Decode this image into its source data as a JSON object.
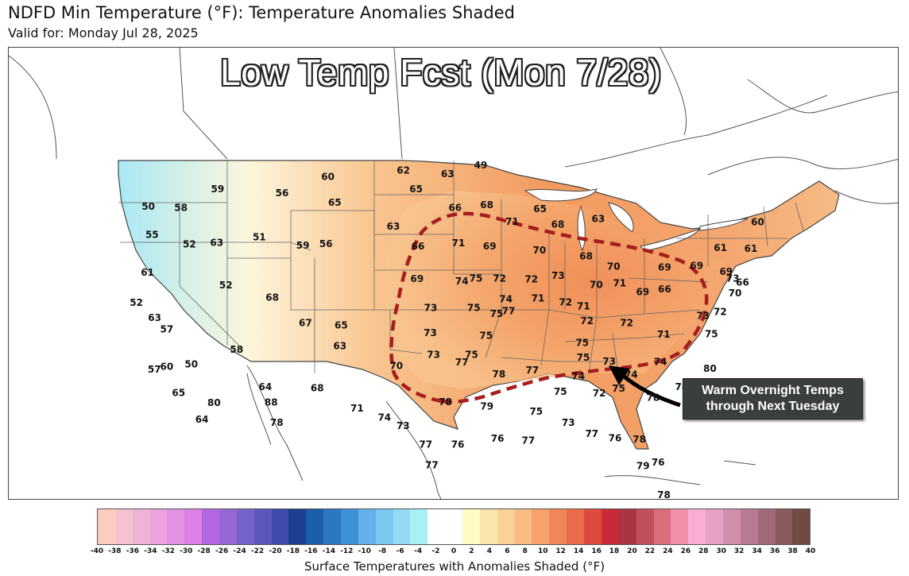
{
  "header": {
    "title": "NDFD Min Temperature (°F): Temperature Anomalies Shaded",
    "subtitle": "Valid for: Monday Jul 28, 2025"
  },
  "overlay_title": "Low Temp Fcst (Mon 7/28)",
  "callout": {
    "line1": "Warm Overnight Temps",
    "line2": "through Next Tuesday"
  },
  "colorbar": {
    "label": "Surface Temperatures with Anomalies Shaded (°F)",
    "ticks": [
      "-40",
      "-38",
      "-36",
      "-34",
      "-32",
      "-30",
      "-28",
      "-26",
      "-24",
      "-22",
      "-20",
      "-18",
      "-16",
      "-14",
      "-12",
      "-10",
      "-8",
      "-6",
      "-4",
      "-2",
      "0",
      "2",
      "4",
      "6",
      "8",
      "10",
      "12",
      "14",
      "16",
      "18",
      "20",
      "22",
      "24",
      "26",
      "28",
      "30",
      "32",
      "34",
      "36",
      "38",
      "40"
    ],
    "colors": [
      "#fdcdbf",
      "#f7c2cf",
      "#f0b3d8",
      "#eaa3de",
      "#e492e2",
      "#dc7fe6",
      "#b267e0",
      "#9867d6",
      "#7663c9",
      "#5a58bb",
      "#3f4aaa",
      "#1d3f8f",
      "#1a5fa8",
      "#2b78c0",
      "#3f90d6",
      "#62b0ec",
      "#7ac7f2",
      "#93daf4",
      "#a9f0f6",
      "#ffffff",
      "#ffffff",
      "#fffbc5",
      "#fbe6ad",
      "#fad298",
      "#f9bd83",
      "#f6a26c",
      "#f28658",
      "#eb6a4a",
      "#de4a3d",
      "#c92a35",
      "#a93444",
      "#c0505e",
      "#db6c7b",
      "#ef8fa8",
      "#fbaed5",
      "#e7a1c6",
      "#cf8eac",
      "#b77a95",
      "#a06a78",
      "#895a5e",
      "#714a43"
    ]
  },
  "map_labels": [
    {
      "t": "50",
      "lon": -124.3,
      "lat": 47.6
    },
    {
      "t": "58",
      "lon": -121.3,
      "lat": 47.2
    },
    {
      "t": "59",
      "lon": -118.2,
      "lat": 48.2
    },
    {
      "t": "55",
      "lon": -123.5,
      "lat": 45.6
    },
    {
      "t": "52",
      "lon": -120.0,
      "lat": 44.6
    },
    {
      "t": "63",
      "lon": -117.6,
      "lat": 44.5
    },
    {
      "t": "61",
      "lon": -123.3,
      "lat": 43.0
    },
    {
      "t": "51",
      "lon": -113.9,
      "lat": 44.6
    },
    {
      "t": "56",
      "lon": -112.3,
      "lat": 47.5
    },
    {
      "t": "60",
      "lon": -108.3,
      "lat": 48.4
    },
    {
      "t": "65",
      "lon": -107.5,
      "lat": 46.6
    },
    {
      "t": "59",
      "lon": -110.0,
      "lat": 43.8
    },
    {
      "t": "56",
      "lon": -108.0,
      "lat": 43.8
    },
    {
      "t": "52",
      "lon": -123.8,
      "lat": 41.0
    },
    {
      "t": "63",
      "lon": -122.0,
      "lat": 39.8
    },
    {
      "t": "57",
      "lon": -120.8,
      "lat": 38.9
    },
    {
      "t": "52",
      "lon": -116.3,
      "lat": 41.5
    },
    {
      "t": "68",
      "lon": -112.2,
      "lat": 40.4
    },
    {
      "t": "57",
      "lon": -121.3,
      "lat": 36.2
    },
    {
      "t": "60",
      "lon": -120.3,
      "lat": 36.3
    },
    {
      "t": "50",
      "lon": -118.3,
      "lat": 36.3
    },
    {
      "t": "67",
      "lon": -109.2,
      "lat": 38.5
    },
    {
      "t": "65",
      "lon": -106.2,
      "lat": 38.2
    },
    {
      "t": "63",
      "lon": -106.2,
      "lat": 36.8
    },
    {
      "t": "58",
      "lon": -114.7,
      "lat": 37.0
    },
    {
      "t": "65",
      "lon": -119.0,
      "lat": 34.4
    },
    {
      "t": "80",
      "lon": -116.0,
      "lat": 33.5
    },
    {
      "t": "64",
      "lon": -116.8,
      "lat": 32.4
    },
    {
      "t": "64",
      "lon": -112.0,
      "lat": 34.3
    },
    {
      "t": "88",
      "lon": -111.4,
      "lat": 33.2
    },
    {
      "t": "78",
      "lon": -110.8,
      "lat": 31.8
    },
    {
      "t": "68",
      "lon": -107.8,
      "lat": 34.0
    },
    {
      "t": "71",
      "lon": -104.5,
      "lat": 32.5
    },
    {
      "t": "62",
      "lon": -101.5,
      "lat": 48.6
    },
    {
      "t": "63",
      "lon": -97.5,
      "lat": 48.3
    },
    {
      "t": "49",
      "lon": -94.5,
      "lat": 48.9
    },
    {
      "t": "65",
      "lon": -100.3,
      "lat": 47.3
    },
    {
      "t": "66",
      "lon": -96.8,
      "lat": 46.0
    },
    {
      "t": "68",
      "lon": -94.0,
      "lat": 46.2
    },
    {
      "t": "71",
      "lon": -91.8,
      "lat": 45.1
    },
    {
      "t": "65",
      "lon": -89.3,
      "lat": 46.0
    },
    {
      "t": "68",
      "lon": -87.8,
      "lat": 45.0
    },
    {
      "t": "63",
      "lon": -84.2,
      "lat": 45.5
    },
    {
      "t": "63",
      "lon": -102.2,
      "lat": 44.8
    },
    {
      "t": "66",
      "lon": -100.0,
      "lat": 43.4
    },
    {
      "t": "71",
      "lon": -96.5,
      "lat": 43.6
    },
    {
      "t": "69",
      "lon": -93.8,
      "lat": 43.4
    },
    {
      "t": "70",
      "lon": -89.5,
      "lat": 43.2
    },
    {
      "t": "68",
      "lon": -85.5,
      "lat": 42.9
    },
    {
      "t": "70",
      "lon": -83.2,
      "lat": 42.3
    },
    {
      "t": "69",
      "lon": -100.0,
      "lat": 41.2
    },
    {
      "t": "74",
      "lon": -96.2,
      "lat": 41.0
    },
    {
      "t": "75",
      "lon": -95.0,
      "lat": 41.2
    },
    {
      "t": "72",
      "lon": -93.0,
      "lat": 41.2
    },
    {
      "t": "72",
      "lon": -90.3,
      "lat": 41.2
    },
    {
      "t": "73",
      "lon": -88.0,
      "lat": 41.5
    },
    {
      "t": "70",
      "lon": -84.8,
      "lat": 41.0
    },
    {
      "t": "71",
      "lon": -82.8,
      "lat": 41.2
    },
    {
      "t": "69",
      "lon": -80.9,
      "lat": 40.7
    },
    {
      "t": "66",
      "lon": -79.0,
      "lat": 41.0
    },
    {
      "t": "69",
      "lon": -78.8,
      "lat": 42.5
    },
    {
      "t": "69",
      "lon": -76.0,
      "lat": 42.8
    },
    {
      "t": "69",
      "lon": -73.5,
      "lat": 42.6
    },
    {
      "t": "61",
      "lon": -73.7,
      "lat": 44.2
    },
    {
      "t": "61",
      "lon": -71.0,
      "lat": 44.4
    },
    {
      "t": "60",
      "lon": -70.0,
      "lat": 46.3
    },
    {
      "t": "66",
      "lon": -72.2,
      "lat": 42.0
    },
    {
      "t": "73",
      "lon": -73.0,
      "lat": 42.2
    },
    {
      "t": "70",
      "lon": -73.0,
      "lat": 41.2
    },
    {
      "t": "72",
      "lon": -74.5,
      "lat": 39.8
    },
    {
      "t": "73",
      "lon": -76.0,
      "lat": 39.4
    },
    {
      "t": "75",
      "lon": -75.5,
      "lat": 38.2
    },
    {
      "t": "73",
      "lon": -98.8,
      "lat": 39.2
    },
    {
      "t": "75",
      "lon": -95.2,
      "lat": 39.2
    },
    {
      "t": "75",
      "lon": -93.3,
      "lat": 38.8
    },
    {
      "t": "77",
      "lon": -92.3,
      "lat": 39.0
    },
    {
      "t": "74",
      "lon": -92.5,
      "lat": 39.8
    },
    {
      "t": "71",
      "lon": -89.8,
      "lat": 39.9
    },
    {
      "t": "72",
      "lon": -87.5,
      "lat": 39.7
    },
    {
      "t": "71",
      "lon": -86.0,
      "lat": 39.5
    },
    {
      "t": "72",
      "lon": -85.8,
      "lat": 38.5
    },
    {
      "t": "72",
      "lon": -82.5,
      "lat": 38.5
    },
    {
      "t": "71",
      "lon": -79.5,
      "lat": 37.9
    },
    {
      "t": "73",
      "lon": -98.8,
      "lat": 37.5
    },
    {
      "t": "75",
      "lon": -94.2,
      "lat": 37.3
    },
    {
      "t": "73",
      "lon": -98.5,
      "lat": 36.0
    },
    {
      "t": "77",
      "lon": -96.2,
      "lat": 35.5
    },
    {
      "t": "75",
      "lon": -95.4,
      "lat": 36.0
    },
    {
      "t": "75",
      "lon": -86.3,
      "lat": 37.0
    },
    {
      "t": "75",
      "lon": -86.3,
      "lat": 36.0
    },
    {
      "t": "73",
      "lon": -84.2,
      "lat": 35.8
    },
    {
      "t": "74",
      "lon": -80.0,
      "lat": 36.0
    },
    {
      "t": "74",
      "lon": -82.5,
      "lat": 35.0
    },
    {
      "t": "80",
      "lon": -76.0,
      "lat": 35.8
    },
    {
      "t": "70",
      "lon": -101.5,
      "lat": 35.3
    },
    {
      "t": "78",
      "lon": -93.2,
      "lat": 34.7
    },
    {
      "t": "77",
      "lon": -90.5,
      "lat": 35.0
    },
    {
      "t": "74",
      "lon": -86.8,
      "lat": 34.7
    },
    {
      "t": "75",
      "lon": -88.3,
      "lat": 33.6
    },
    {
      "t": "72",
      "lon": -85.2,
      "lat": 33.6
    },
    {
      "t": "75",
      "lon": -83.6,
      "lat": 34.0
    },
    {
      "t": "78",
      "lon": -78.5,
      "lat": 34.4
    },
    {
      "t": "78",
      "lon": -80.9,
      "lat": 33.5
    },
    {
      "t": "78",
      "lon": -97.5,
      "lat": 32.8
    },
    {
      "t": "79",
      "lon": -94.2,
      "lat": 32.5
    },
    {
      "t": "75",
      "lon": -90.3,
      "lat": 32.2
    },
    {
      "t": "74",
      "lon": -102.3,
      "lat": 31.8
    },
    {
      "t": "73",
      "lon": -100.8,
      "lat": 31.2
    },
    {
      "t": "73",
      "lon": -87.8,
      "lat": 31.5
    },
    {
      "t": "77",
      "lon": -86.0,
      "lat": 30.8
    },
    {
      "t": "76",
      "lon": -84.2,
      "lat": 30.6
    },
    {
      "t": "78",
      "lon": -82.3,
      "lat": 30.6
    },
    {
      "t": "77",
      "lon": -99.0,
      "lat": 29.9
    },
    {
      "t": "76",
      "lon": -96.5,
      "lat": 29.9
    },
    {
      "t": "76",
      "lon": -93.4,
      "lat": 30.3
    },
    {
      "t": "77",
      "lon": -91.0,
      "lat": 30.2
    },
    {
      "t": "79",
      "lon": -82.2,
      "lat": 28.8
    },
    {
      "t": "76",
      "lon": -81.0,
      "lat": 29.1
    },
    {
      "t": "77",
      "lon": -98.5,
      "lat": 28.5
    },
    {
      "t": "78",
      "lon": -80.8,
      "lat": 26.9
    }
  ]
}
